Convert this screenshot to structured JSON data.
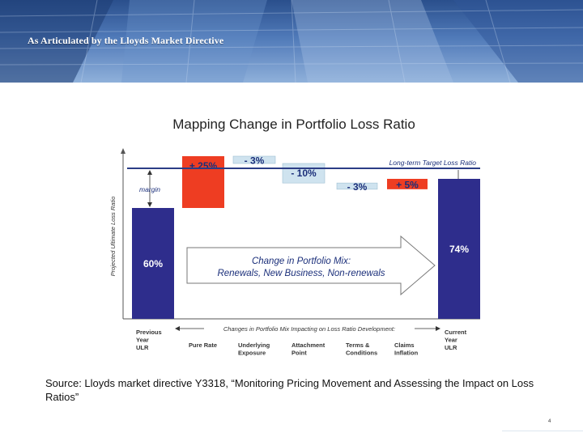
{
  "header": {
    "title": "As Articulated by the Lloyds Market Directive"
  },
  "chart_data": {
    "type": "bar",
    "title": "Mapping Change in Portfolio Loss Ratio",
    "ylabel": "Projected Ultimate Loss Ratio",
    "target_label": "Long-term Target Loss Ratio",
    "margin_label": "margin",
    "categories": [
      "Previous Year ULR",
      "Pure Rate",
      "Underlying Exposure",
      "Attachment Point",
      "Terms & Conditions",
      "Claims Inflation",
      "Current Year ULR"
    ],
    "category_lines": [
      [
        "Previous",
        "Year",
        "ULR"
      ],
      [
        "Pure Rate"
      ],
      [
        "Underlying",
        "Exposure"
      ],
      [
        "Attachment",
        "Point"
      ],
      [
        "Terms &",
        "Conditions"
      ],
      [
        "Claims",
        "Inflation"
      ],
      [
        "Current",
        "Year",
        "ULR"
      ]
    ],
    "value_labels": [
      "60%",
      "+ 25%",
      "- 3%",
      "- 10%",
      "- 3%",
      "+ 5%",
      "74%"
    ],
    "values": [
      60,
      25,
      -3,
      -10,
      -3,
      5,
      74
    ],
    "axis_caption": "Changes in Portfolio Mix Impacting on Loss Ratio Development:",
    "arrow_text": [
      "Change in Portfolio Mix:",
      "Renewals, New Business, Non-renewals"
    ]
  },
  "colors": {
    "total_bar": "#2e2d8c",
    "increase_bar": "#ee3d22",
    "decrease_bar": "#cfe3ef",
    "target_line": "#2b3d86",
    "bar_text_total": "#ffffff",
    "bar_text_delta": "#1b2f7a"
  },
  "source": {
    "text": "Source:  Lloyds market directive Y3318, “Monitoring Pricing Movement and Assessing the Impact on Loss Ratios”"
  },
  "footer": {
    "page_number": "4"
  }
}
